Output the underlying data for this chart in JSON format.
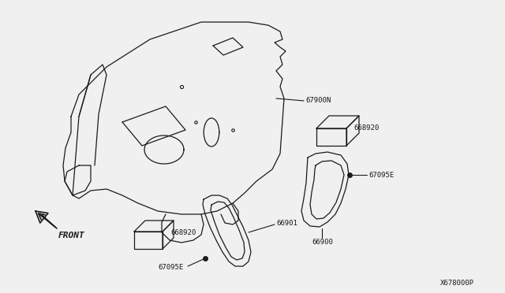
{
  "bg_color": "#f0f0f0",
  "line_color": "#1a1a1a",
  "watermark": "X678000P",
  "parts": {
    "main_panel_label": "67900N",
    "clip_label_1": "668920",
    "trim_right_label": "67095E",
    "bracket_right_label": "66900",
    "clip_label_2": "668920",
    "trim_left_label_1": "66901",
    "trim_left_label_2": "67095E"
  }
}
